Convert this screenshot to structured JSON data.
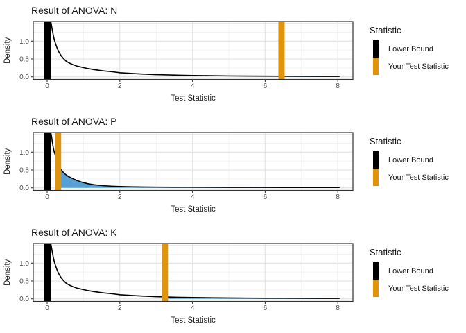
{
  "colors": {
    "lower_bound_bar": "#000000",
    "test_statistic_bar": "#E0940B",
    "shade_fill": "#56A0D3",
    "curve": "#000000",
    "panel_border": "#333333",
    "grid_major": "#E7E7E7",
    "grid_minor": "#F3F3F3",
    "tick_text": "#4D4D4D",
    "title_text": "#1A1A1A"
  },
  "axes": {
    "xlabel": "Test Statistic",
    "ylabel": "Density",
    "x_range": [
      -0.38,
      8.42
    ],
    "y_range": [
      -0.07,
      1.55
    ],
    "x_major_ticks": [
      0,
      2,
      4,
      6,
      8
    ],
    "x_tick_labels": [
      "0",
      "2",
      "4",
      "6",
      "8"
    ],
    "x_minor_ticks": [
      1,
      3,
      5,
      7
    ],
    "y_major_ticks": [
      0,
      0.5,
      1,
      1.5
    ],
    "y_tick_labels": [
      "0.0",
      "0.5",
      "1.0"
    ],
    "y_labeled_ticks": [
      0,
      0.5,
      1
    ],
    "y_minor_ticks": [
      0.25,
      0.75,
      1.25
    ],
    "grid": true
  },
  "legend": {
    "title": "Statistic",
    "items": [
      {
        "label": "Lower Bound",
        "color_key": "lower_bound_bar"
      },
      {
        "label": "Your Test Statistic",
        "color_key": "test_statistic_bar"
      }
    ],
    "position": "right"
  },
  "chart_data": [
    {
      "type": "area",
      "title": "Result of ANOVA: N",
      "lower_bound": 0,
      "test_statistic": 6.45,
      "shade_from": 6.45,
      "curve": [
        [
          0.05,
          1.55
        ],
        [
          0.1,
          1.55
        ],
        [
          0.12,
          1.44
        ],
        [
          0.14,
          1.32
        ],
        [
          0.17,
          1.16
        ],
        [
          0.2,
          1.03
        ],
        [
          0.24,
          0.9
        ],
        [
          0.28,
          0.79
        ],
        [
          0.33,
          0.68
        ],
        [
          0.38,
          0.6
        ],
        [
          0.45,
          0.51
        ],
        [
          0.52,
          0.44
        ],
        [
          0.6,
          0.39
        ],
        [
          0.7,
          0.345
        ],
        [
          0.82,
          0.3
        ],
        [
          0.95,
          0.27
        ],
        [
          1.1,
          0.235
        ],
        [
          1.3,
          0.2
        ],
        [
          1.55,
          0.165
        ],
        [
          1.8,
          0.14
        ],
        [
          2.0,
          0.115
        ],
        [
          2.3,
          0.095
        ],
        [
          2.6,
          0.078
        ],
        [
          3.0,
          0.062
        ],
        [
          3.5,
          0.048
        ],
        [
          4.0,
          0.038
        ],
        [
          4.5,
          0.031
        ],
        [
          5.0,
          0.026
        ],
        [
          5.5,
          0.022
        ],
        [
          6.0,
          0.019
        ],
        [
          6.5,
          0.017
        ],
        [
          7.0,
          0.015
        ],
        [
          7.5,
          0.013
        ],
        [
          8.05,
          0.012
        ]
      ]
    },
    {
      "type": "area",
      "title": "Result of ANOVA: P",
      "lower_bound": 0,
      "test_statistic": 0.3,
      "shade_from": 0.3,
      "curve": [
        [
          0.05,
          1.55
        ],
        [
          0.1,
          1.55
        ],
        [
          0.12,
          1.45
        ],
        [
          0.14,
          1.3
        ],
        [
          0.17,
          1.12
        ],
        [
          0.2,
          0.99
        ],
        [
          0.24,
          0.87
        ],
        [
          0.28,
          0.76
        ],
        [
          0.32,
          0.64
        ],
        [
          0.36,
          0.55
        ],
        [
          0.42,
          0.46
        ],
        [
          0.5,
          0.38
        ],
        [
          0.6,
          0.31
        ],
        [
          0.7,
          0.26
        ],
        [
          0.82,
          0.205
        ],
        [
          0.95,
          0.16
        ],
        [
          1.1,
          0.12
        ],
        [
          1.3,
          0.085
        ],
        [
          1.55,
          0.06
        ],
        [
          1.8,
          0.045
        ],
        [
          2.0,
          0.037
        ],
        [
          2.3,
          0.03
        ],
        [
          2.6,
          0.025
        ],
        [
          3.0,
          0.021
        ],
        [
          3.5,
          0.018
        ],
        [
          4.0,
          0.016
        ],
        [
          4.5,
          0.014
        ],
        [
          5.0,
          0.013
        ],
        [
          5.5,
          0.012
        ],
        [
          6.0,
          0.011
        ],
        [
          6.5,
          0.01
        ],
        [
          7.0,
          0.01
        ],
        [
          7.5,
          0.009
        ],
        [
          8.05,
          0.009
        ]
      ]
    },
    {
      "type": "area",
      "title": "Result of ANOVA: K",
      "lower_bound": 0,
      "test_statistic": 3.24,
      "shade_from": 3.24,
      "curve": [
        [
          0.05,
          1.55
        ],
        [
          0.1,
          1.55
        ],
        [
          0.12,
          1.44
        ],
        [
          0.14,
          1.32
        ],
        [
          0.17,
          1.16
        ],
        [
          0.2,
          1.03
        ],
        [
          0.24,
          0.9
        ],
        [
          0.28,
          0.79
        ],
        [
          0.33,
          0.68
        ],
        [
          0.38,
          0.6
        ],
        [
          0.45,
          0.51
        ],
        [
          0.52,
          0.44
        ],
        [
          0.6,
          0.39
        ],
        [
          0.7,
          0.345
        ],
        [
          0.82,
          0.3
        ],
        [
          0.95,
          0.27
        ],
        [
          1.1,
          0.235
        ],
        [
          1.3,
          0.2
        ],
        [
          1.55,
          0.165
        ],
        [
          1.8,
          0.14
        ],
        [
          2.0,
          0.115
        ],
        [
          2.3,
          0.095
        ],
        [
          2.6,
          0.078
        ],
        [
          3.0,
          0.06
        ],
        [
          3.5,
          0.046
        ],
        [
          4.0,
          0.036
        ],
        [
          4.5,
          0.029
        ],
        [
          5.0,
          0.024
        ],
        [
          5.5,
          0.021
        ],
        [
          6.0,
          0.018
        ],
        [
          6.5,
          0.016
        ],
        [
          7.0,
          0.014
        ],
        [
          7.5,
          0.013
        ],
        [
          8.05,
          0.012
        ]
      ]
    }
  ]
}
